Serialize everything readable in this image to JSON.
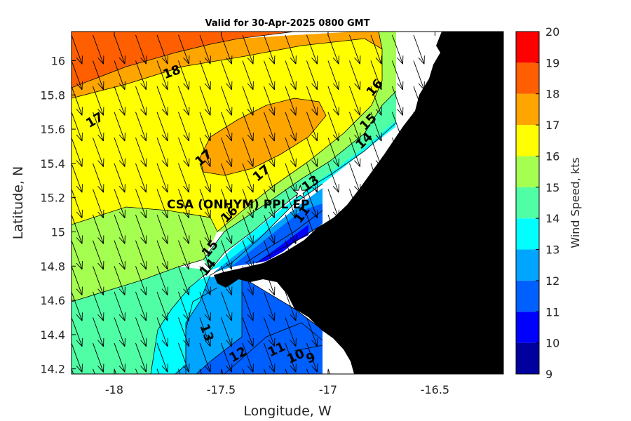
{
  "title": "Valid for 30-Apr-2025 0800 GMT",
  "xlabel": "Longitude, W",
  "ylabel": "Latitude, N",
  "colorbar_label": "Wind Speed, kts",
  "station_label": "CSA (ONHYM) PPL EP",
  "colors": {
    "land": "#000000",
    "nodata": "#ffffff",
    "marker": "#ffffff",
    "contour_line": "#000000"
  },
  "chart_data": {
    "type": "heatmap",
    "map_type": "wind speed contour map with direction arrows",
    "region": "Senegal coast, Cap-Vert peninsula",
    "xlim": [
      -18.2,
      -16.18
    ],
    "ylim": [
      14.17,
      16.17
    ],
    "x_ticks": [
      {
        "value": -18,
        "label": "-18"
      },
      {
        "value": -17.5,
        "label": "-17.5"
      },
      {
        "value": -17,
        "label": "-17"
      },
      {
        "value": -16.5,
        "label": "-16.5"
      }
    ],
    "y_ticks": [
      {
        "value": 16,
        "label": "16"
      },
      {
        "value": 15.8,
        "label": "15.8"
      },
      {
        "value": 15.6,
        "label": "15.6"
      },
      {
        "value": 15.4,
        "label": "15.4"
      },
      {
        "value": 15.2,
        "label": "15.2"
      },
      {
        "value": 15,
        "label": "15"
      },
      {
        "value": 14.8,
        "label": "14.8"
      },
      {
        "value": 14.6,
        "label": "14.6"
      },
      {
        "value": 14.4,
        "label": "14.4"
      },
      {
        "value": 14.2,
        "label": "14.2"
      }
    ],
    "colorbar": {
      "min": 9,
      "max": 20,
      "tick_labels": [
        "9",
        "10",
        "11",
        "12",
        "13",
        "14",
        "15",
        "16",
        "17",
        "18",
        "19",
        "20"
      ],
      "levels": [
        {
          "from": 9,
          "to": 10,
          "color": "#00009f"
        },
        {
          "from": 10,
          "to": 11,
          "color": "#0000ff"
        },
        {
          "from": 11,
          "to": 12,
          "color": "#005fff"
        },
        {
          "from": 12,
          "to": 13,
          "color": "#00a5ff"
        },
        {
          "from": 13,
          "to": 14,
          "color": "#00ffff"
        },
        {
          "from": 14,
          "to": 15,
          "color": "#50ffa5"
        },
        {
          "from": 15,
          "to": 16,
          "color": "#a5ff50"
        },
        {
          "from": 16,
          "to": 17,
          "color": "#ffff00"
        },
        {
          "from": 17,
          "to": 18,
          "color": "#ffa500"
        },
        {
          "from": 18,
          "to": 19,
          "color": "#ff5f00"
        },
        {
          "from": 19,
          "to": 20,
          "color": "#ff0000"
        }
      ]
    },
    "contour_labels": [
      {
        "text": "18",
        "lon": -17.73,
        "lat": 15.93,
        "angle": -20
      },
      {
        "text": "17",
        "lon": -18.09,
        "lat": 15.65,
        "angle": -30
      },
      {
        "text": "17",
        "lon": -17.58,
        "lat": 15.43,
        "angle": -40
      },
      {
        "text": "17",
        "lon": -17.31,
        "lat": 15.34,
        "angle": -40
      },
      {
        "text": "16",
        "lon": -16.78,
        "lat": 15.84,
        "angle": -50
      },
      {
        "text": "15",
        "lon": -16.81,
        "lat": 15.64,
        "angle": -45
      },
      {
        "text": "14",
        "lon": -16.83,
        "lat": 15.53,
        "angle": -45
      },
      {
        "text": "16",
        "lon": -17.46,
        "lat": 15.1,
        "angle": -45
      },
      {
        "text": "15",
        "lon": -17.55,
        "lat": 14.9,
        "angle": -50
      },
      {
        "text": "14",
        "lon": -17.56,
        "lat": 14.79,
        "angle": -50
      },
      {
        "text": "13",
        "lon": -17.08,
        "lat": 15.28,
        "angle": -35
      },
      {
        "text": "11",
        "lon": -17.12,
        "lat": 15.1,
        "angle": -55
      },
      {
        "text": "13",
        "lon": -17.57,
        "lat": 14.41,
        "angle": 70
      },
      {
        "text": "12",
        "lon": -17.42,
        "lat": 14.28,
        "angle": -30
      },
      {
        "text": "11",
        "lon": -17.24,
        "lat": 14.31,
        "angle": -25
      },
      {
        "text": "10",
        "lon": -17.15,
        "lat": 14.27,
        "angle": -25
      },
      {
        "text": "9",
        "lon": -17.08,
        "lat": 14.26,
        "angle": -20
      }
    ],
    "station": {
      "lon": -17.13,
      "lat": 15.23
    },
    "vector_field": {
      "grid_lon": [
        -18.2,
        -18.1,
        -18.0,
        -17.9,
        -17.8,
        -17.7,
        -17.6,
        -17.5,
        -17.4,
        -17.3,
        -17.2,
        -17.1,
        -17.0,
        -16.9,
        -16.8,
        -16.7,
        -16.6
      ],
      "grid_lat": [
        16.15,
        16.0,
        15.85,
        15.7,
        15.55,
        15.4,
        15.25,
        15.1,
        14.95,
        14.8,
        14.65,
        14.5,
        14.35,
        14.2
      ],
      "direction_to_deg": 160
    }
  }
}
